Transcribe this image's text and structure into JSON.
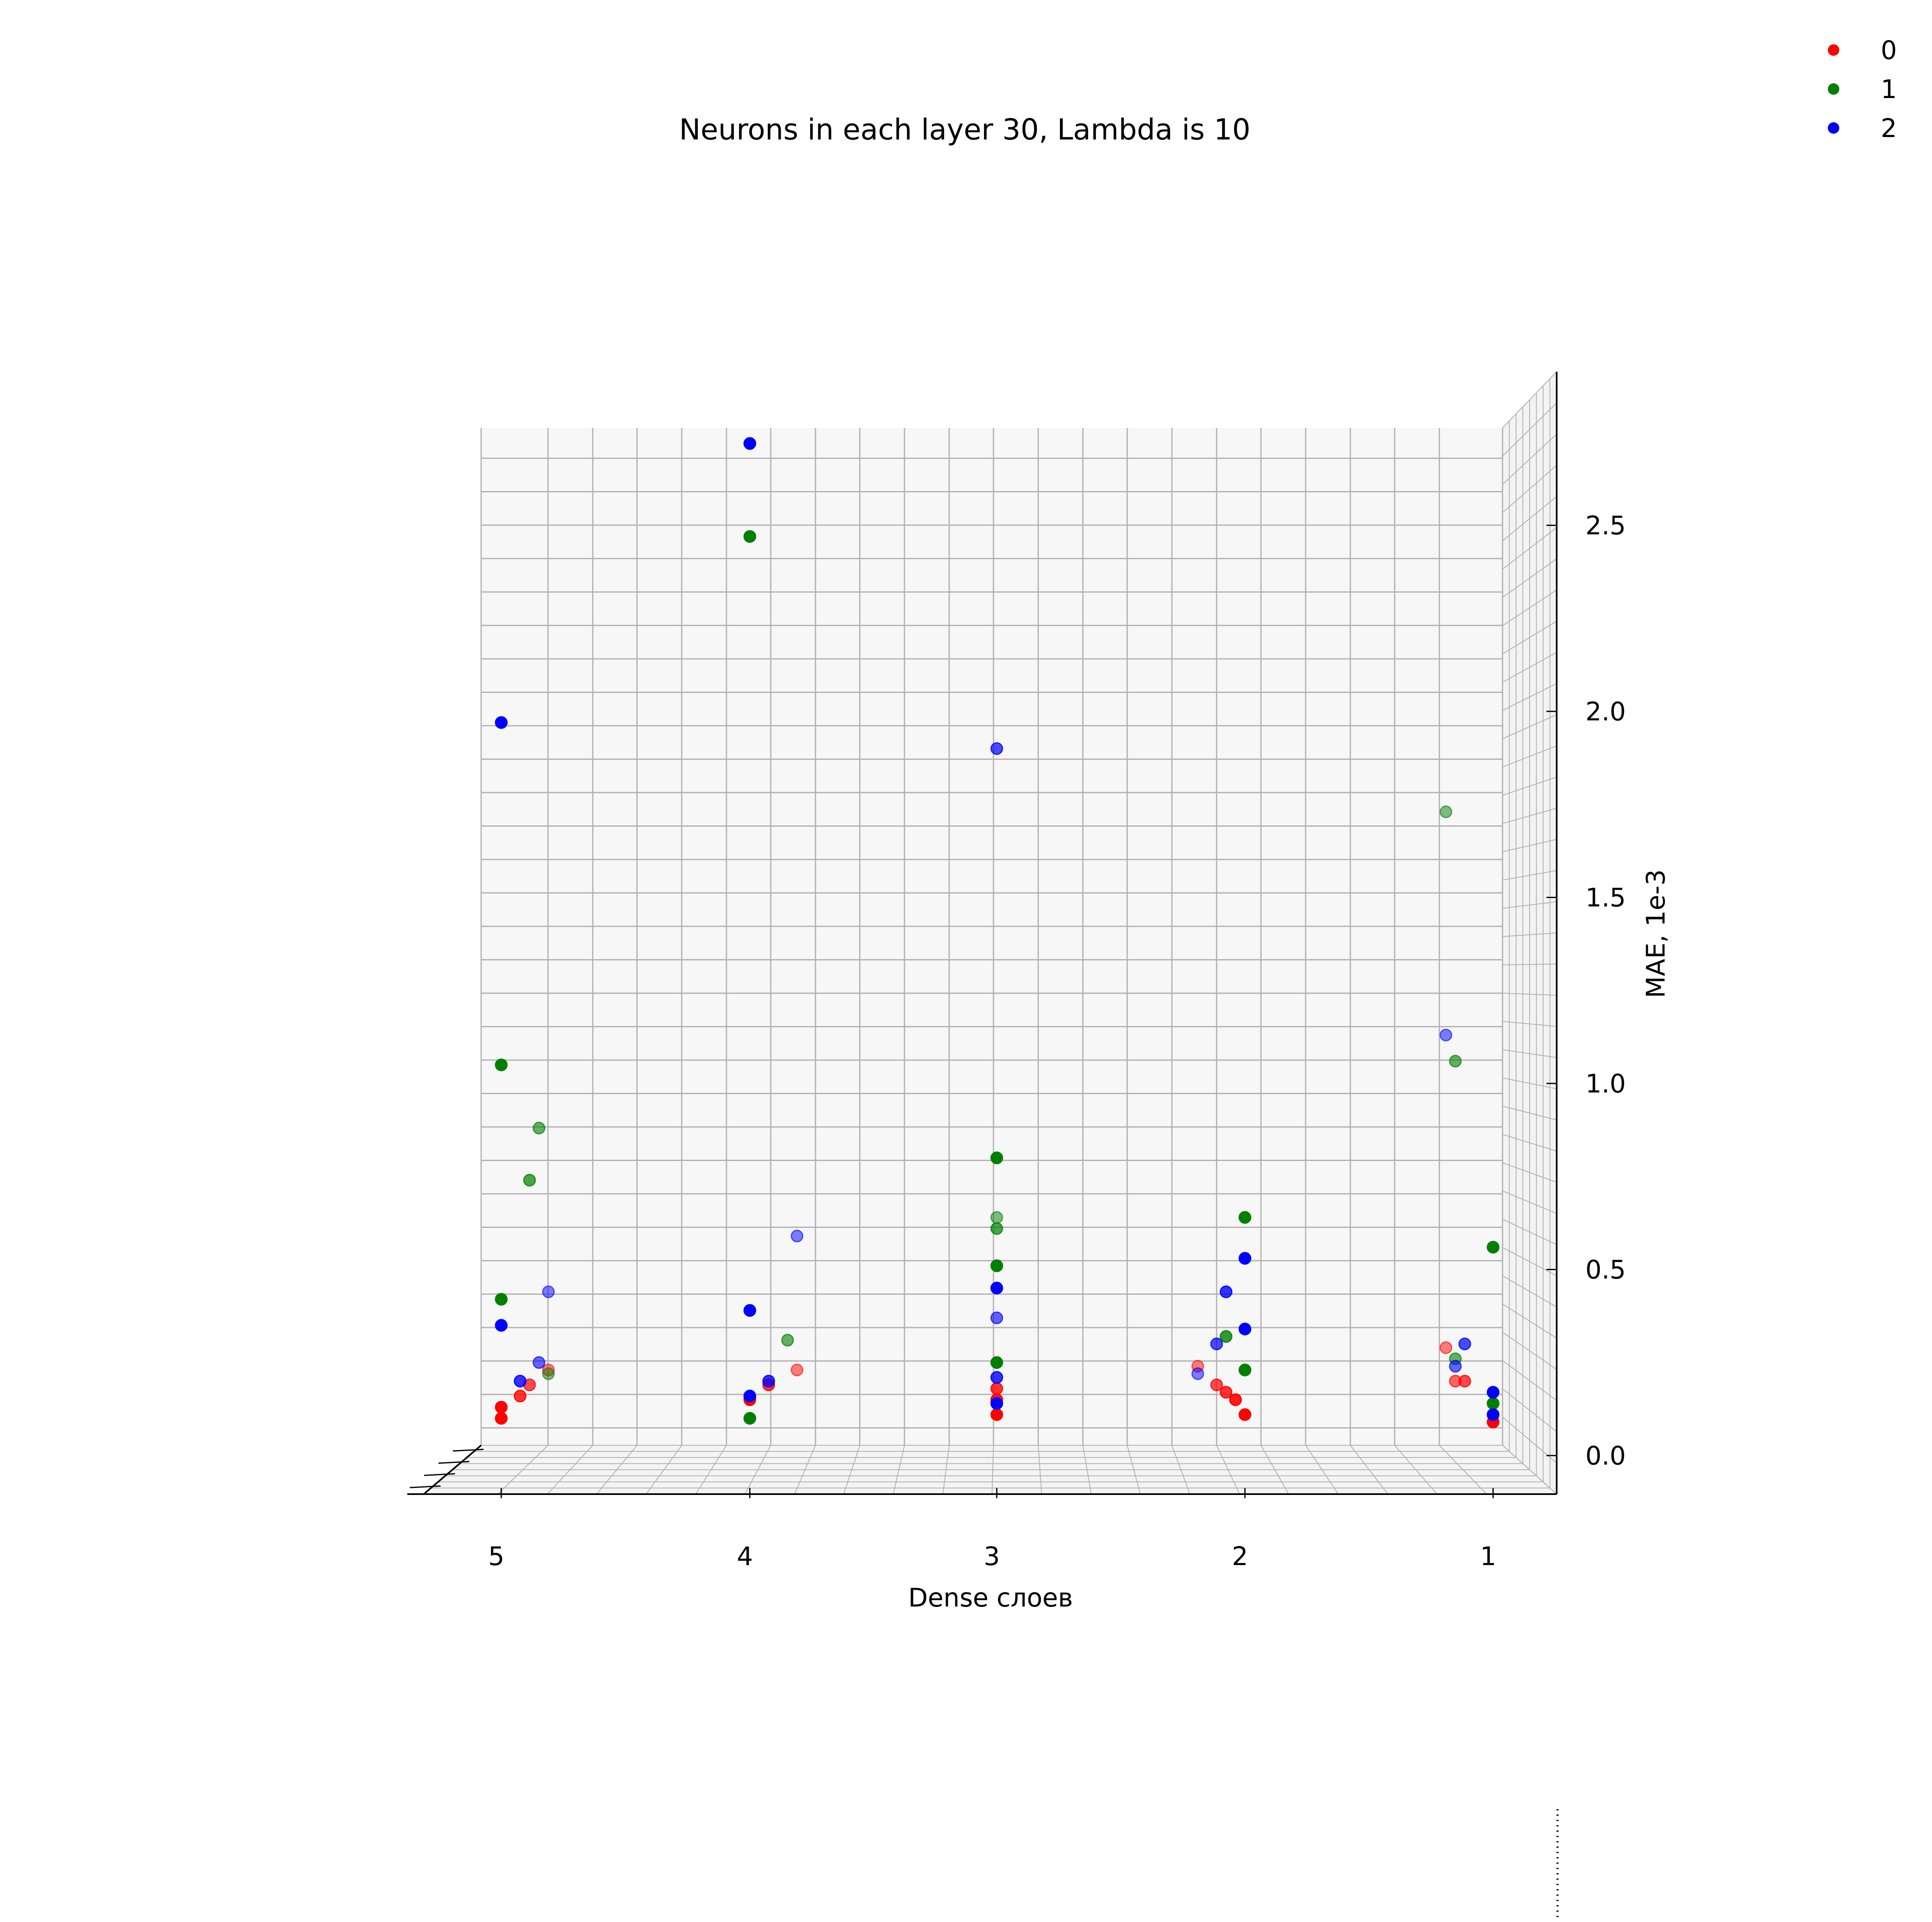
{
  "chart_data": {
    "type": "scatter",
    "projection": "3d",
    "title": "Neurons in each layer 30, Lambda is 10",
    "xlabel": "Dense слоев",
    "ylabel": "MAE, 1e-3",
    "x_ticks": [
      "5",
      "4",
      "3",
      "2",
      "1"
    ],
    "y_ticks": [
      "0.0",
      "0.5",
      "1.0",
      "1.5",
      "2.0",
      "2.5"
    ],
    "ylim": [
      0.0,
      2.78
    ],
    "grid": true,
    "legend_position": "top-right",
    "series": [
      {
        "name": "0",
        "color": "#ff0000",
        "points": [
          {
            "x": 5,
            "y": 0.1,
            "alpha": 1.0
          },
          {
            "x": 5,
            "y": 0.13,
            "alpha": 1.0
          },
          {
            "x": 5,
            "y": 0.16,
            "alpha": 0.8
          },
          {
            "x": 5,
            "y": 0.19,
            "alpha": 0.7
          },
          {
            "x": 5,
            "y": 0.23,
            "alpha": 0.5
          },
          {
            "x": 4,
            "y": 0.15,
            "alpha": 1.0
          },
          {
            "x": 4,
            "y": 0.19,
            "alpha": 0.8
          },
          {
            "x": 4,
            "y": 0.23,
            "alpha": 0.5
          },
          {
            "x": 3,
            "y": 0.11,
            "alpha": 1.0
          },
          {
            "x": 3,
            "y": 0.15,
            "alpha": 0.9
          },
          {
            "x": 3,
            "y": 0.18,
            "alpha": 0.8
          },
          {
            "x": 2,
            "y": 0.11,
            "alpha": 1.0
          },
          {
            "x": 2,
            "y": 0.15,
            "alpha": 0.9
          },
          {
            "x": 2,
            "y": 0.17,
            "alpha": 0.8
          },
          {
            "x": 2,
            "y": 0.19,
            "alpha": 0.7
          },
          {
            "x": 2,
            "y": 0.24,
            "alpha": 0.5
          },
          {
            "x": 1,
            "y": 0.09,
            "alpha": 1.0
          },
          {
            "x": 1,
            "y": 0.2,
            "alpha": 0.7
          },
          {
            "x": 1,
            "y": 0.2,
            "alpha": 0.6
          },
          {
            "x": 1,
            "y": 0.29,
            "alpha": 0.5
          }
        ]
      },
      {
        "name": "1",
        "color": "#008000",
        "points": [
          {
            "x": 5,
            "y": 1.05,
            "alpha": 1.0
          },
          {
            "x": 5,
            "y": 0.42,
            "alpha": 1.0
          },
          {
            "x": 5,
            "y": 0.74,
            "alpha": 0.7
          },
          {
            "x": 5,
            "y": 0.88,
            "alpha": 0.6
          },
          {
            "x": 5,
            "y": 0.22,
            "alpha": 0.5
          },
          {
            "x": 4,
            "y": 2.47,
            "alpha": 1.0
          },
          {
            "x": 4,
            "y": 0.1,
            "alpha": 1.0
          },
          {
            "x": 4,
            "y": 0.31,
            "alpha": 0.6
          },
          {
            "x": 3,
            "y": 0.8,
            "alpha": 1.0
          },
          {
            "x": 3,
            "y": 0.51,
            "alpha": 1.0
          },
          {
            "x": 3,
            "y": 0.25,
            "alpha": 1.0
          },
          {
            "x": 3,
            "y": 0.61,
            "alpha": 0.7
          },
          {
            "x": 3,
            "y": 0.64,
            "alpha": 0.5
          },
          {
            "x": 2,
            "y": 0.64,
            "alpha": 1.0
          },
          {
            "x": 2,
            "y": 0.23,
            "alpha": 1.0
          },
          {
            "x": 2,
            "y": 0.32,
            "alpha": 0.8
          },
          {
            "x": 1,
            "y": 0.56,
            "alpha": 1.0
          },
          {
            "x": 1,
            "y": 0.14,
            "alpha": 1.0
          },
          {
            "x": 1,
            "y": 1.06,
            "alpha": 0.6
          },
          {
            "x": 1,
            "y": 1.73,
            "alpha": 0.5
          },
          {
            "x": 1,
            "y": 0.26,
            "alpha": 0.6
          }
        ]
      },
      {
        "name": "2",
        "color": "#0000ff",
        "points": [
          {
            "x": 5,
            "y": 1.97,
            "alpha": 1.0
          },
          {
            "x": 5,
            "y": 0.35,
            "alpha": 1.0
          },
          {
            "x": 5,
            "y": 0.2,
            "alpha": 0.8
          },
          {
            "x": 5,
            "y": 0.25,
            "alpha": 0.6
          },
          {
            "x": 5,
            "y": 0.44,
            "alpha": 0.5
          },
          {
            "x": 4,
            "y": 2.72,
            "alpha": 1.0
          },
          {
            "x": 4,
            "y": 0.39,
            "alpha": 1.0
          },
          {
            "x": 4,
            "y": 0.16,
            "alpha": 1.0
          },
          {
            "x": 4,
            "y": 0.2,
            "alpha": 0.8
          },
          {
            "x": 4,
            "y": 0.59,
            "alpha": 0.5
          },
          {
            "x": 3,
            "y": 1.9,
            "alpha": 0.7
          },
          {
            "x": 3,
            "y": 0.45,
            "alpha": 1.0
          },
          {
            "x": 3,
            "y": 0.14,
            "alpha": 1.0
          },
          {
            "x": 3,
            "y": 0.37,
            "alpha": 0.6
          },
          {
            "x": 3,
            "y": 0.21,
            "alpha": 0.8
          },
          {
            "x": 2,
            "y": 0.53,
            "alpha": 1.0
          },
          {
            "x": 2,
            "y": 0.34,
            "alpha": 1.0
          },
          {
            "x": 2,
            "y": 0.44,
            "alpha": 0.8
          },
          {
            "x": 2,
            "y": 0.3,
            "alpha": 0.7
          },
          {
            "x": 2,
            "y": 0.22,
            "alpha": 0.5
          },
          {
            "x": 1,
            "y": 0.11,
            "alpha": 1.0
          },
          {
            "x": 1,
            "y": 0.17,
            "alpha": 1.0
          },
          {
            "x": 1,
            "y": 0.3,
            "alpha": 0.7
          },
          {
            "x": 1,
            "y": 0.24,
            "alpha": 0.6
          },
          {
            "x": 1,
            "y": 1.13,
            "alpha": 0.5
          }
        ]
      }
    ]
  }
}
